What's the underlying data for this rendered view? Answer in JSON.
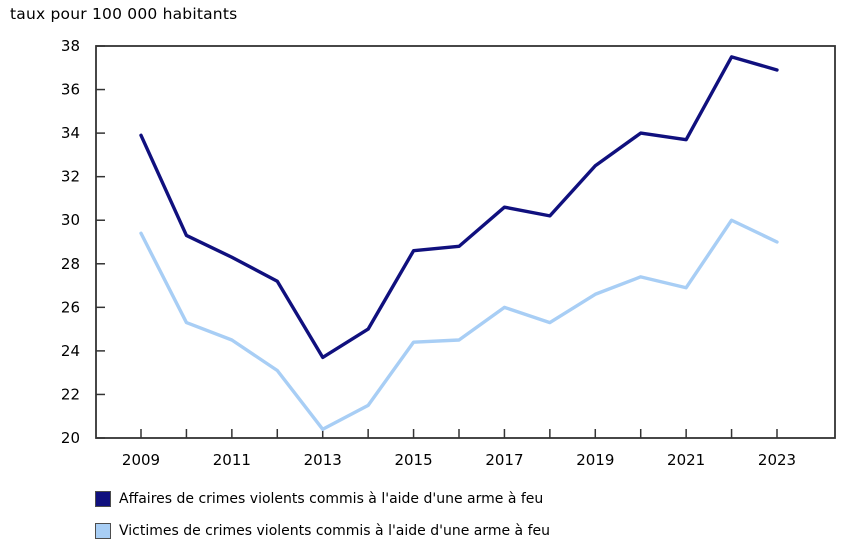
{
  "chart_data": {
    "type": "line",
    "title": "taux pour 100 000 habitants",
    "x": [
      2009,
      2010,
      2011,
      2012,
      2013,
      2014,
      2015,
      2016,
      2017,
      2018,
      2019,
      2020,
      2021,
      2022,
      2023
    ],
    "xtick_labels": [
      "2009",
      "2011",
      "2013",
      "2015",
      "2017",
      "2019",
      "2021",
      "2023"
    ],
    "ylim": [
      20,
      38
    ],
    "ytick_step": 2,
    "grid": false,
    "legend_position": "bottom-left",
    "axis_color": "#333333",
    "text_color": "#000000",
    "series": [
      {
        "name": "Affaires de crimes violents commis à l'aide d'une arme à feu",
        "color": "#10107E",
        "values": [
          33.9,
          29.3,
          28.3,
          27.2,
          23.7,
          25.0,
          28.6,
          28.8,
          30.6,
          30.2,
          32.5,
          34.0,
          33.7,
          37.5,
          36.9
        ]
      },
      {
        "name": "Victimes de crimes violents commis à l'aide d'une arme à feu",
        "color": "#A8CEF5",
        "values": [
          29.4,
          25.3,
          24.5,
          23.1,
          20.4,
          21.5,
          24.4,
          24.5,
          26.0,
          25.3,
          26.6,
          27.4,
          26.9,
          30.0,
          29.0
        ]
      }
    ]
  }
}
